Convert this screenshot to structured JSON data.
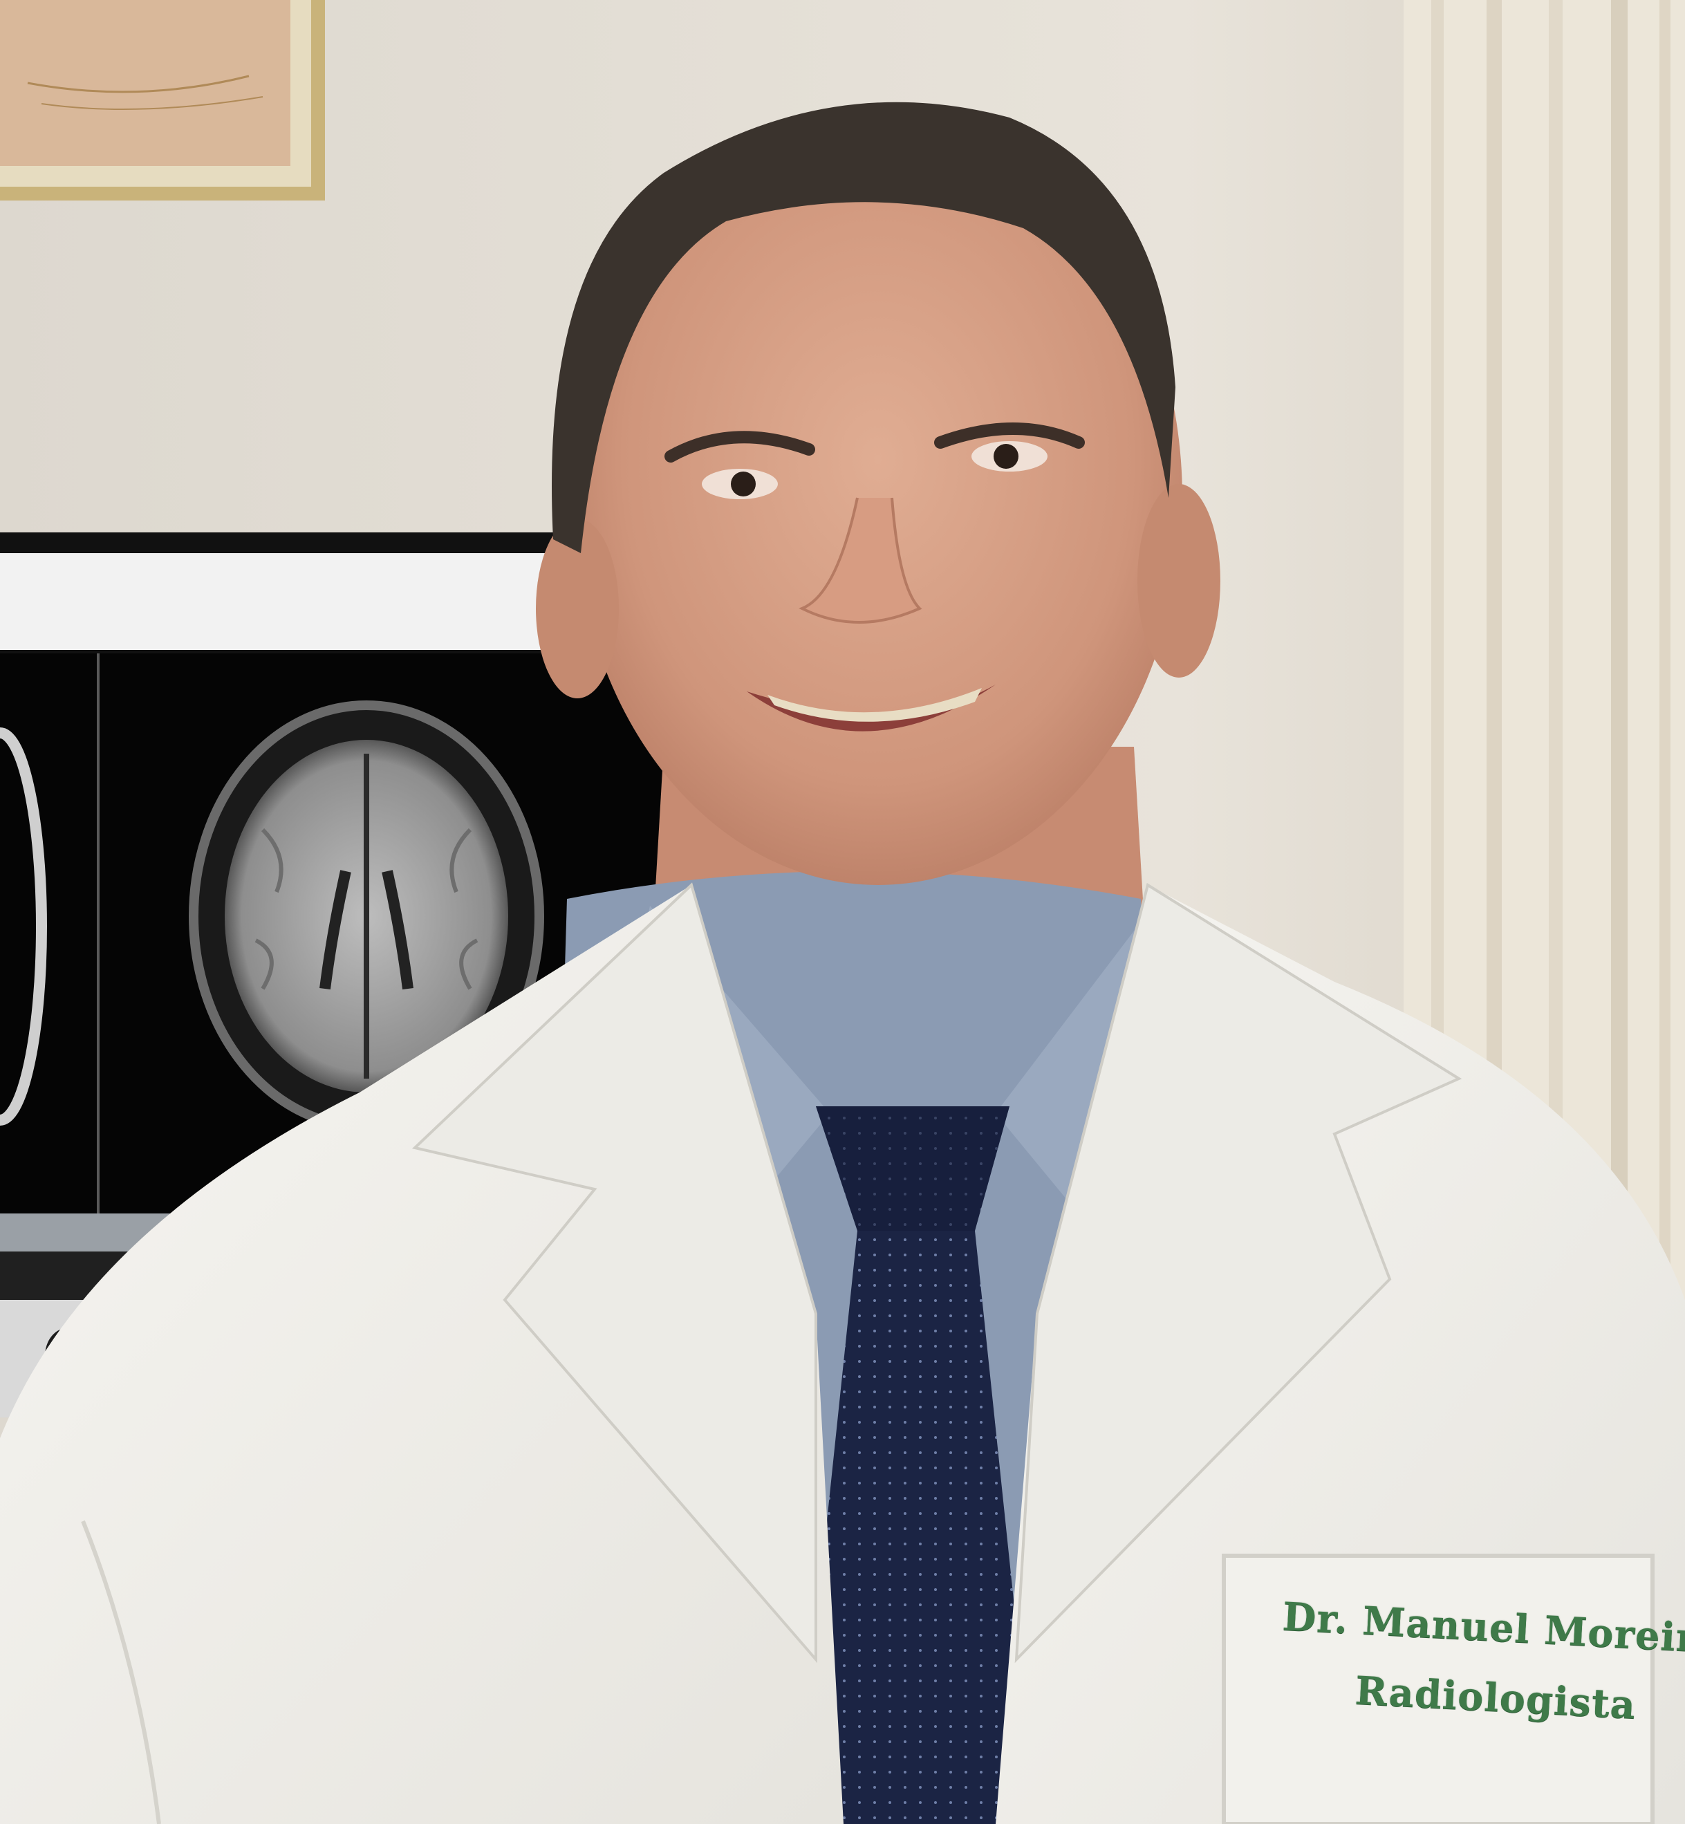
{
  "photo": {
    "subject": "radiologist-portrait",
    "coat_embroidery": {
      "name": "Dr. Manuel Moreira",
      "title": "Radiologista",
      "color": "#3f7a49"
    },
    "colors": {
      "wall": "#e2ddd3",
      "coat": "#f4f3ef",
      "shirt": "#8b9bb3",
      "tie": "#1b2444",
      "monitor_screen": "#050505",
      "frame_gold": "#c9b37a"
    },
    "icons": [
      "apple-logo-icon",
      "brain-mri-scan"
    ]
  }
}
